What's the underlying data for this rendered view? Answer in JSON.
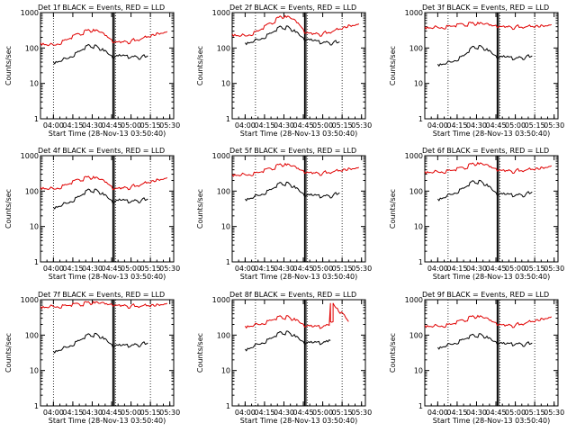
{
  "figure": {
    "start_time_label": "Start Time (28-Nov-13 03:50:40)"
  },
  "colors": {
    "events": "#000000",
    "lld": "#e00000",
    "axes": "#000000",
    "background": "#ffffff"
  },
  "chart_data": [
    {
      "type": "line",
      "title": "Det 1f BLACK = Events, RED = LLD",
      "xlabel": "Start Time (28-Nov-13 03:50:40)",
      "ylabel": "Counts/sec",
      "yscale": "log",
      "ylim": [
        1,
        1000
      ],
      "ytick_labels": [
        "1",
        "10",
        "100",
        "1000"
      ],
      "xlim": [
        "03:50",
        "05:33"
      ],
      "xtick_labels": [
        "04:00",
        "04:15",
        "04:30",
        "04:45",
        "05:00",
        "05:15",
        "05:30"
      ],
      "grid": false,
      "series": [
        {
          "name": "Events",
          "color": "black",
          "x": [
            "04:00",
            "04:10",
            "04:20",
            "04:28",
            "04:35",
            "04:42",
            "04:46",
            "04:52",
            "05:00",
            "05:08",
            "05:13"
          ],
          "y": [
            40,
            50,
            80,
            120,
            100,
            70,
            50,
            60,
            55,
            55,
            60
          ]
        },
        {
          "name": "LLD",
          "color": "red",
          "x": [
            "03:50",
            "04:00",
            "04:10",
            "04:20",
            "04:28",
            "04:35",
            "04:42",
            "04:46",
            "04:52",
            "05:00",
            "05:10",
            "05:20",
            "05:28"
          ],
          "y": [
            140,
            120,
            170,
            250,
            310,
            290,
            200,
            140,
            140,
            155,
            200,
            270,
            290
          ]
        }
      ],
      "markers": {
        "dotted_vlines": [
          "04:00",
          "04:48",
          "05:15"
        ],
        "solid_vlines": [
          "04:46",
          "04:47"
        ]
      }
    },
    {
      "type": "line",
      "title": "Det 2f BLACK = Events, RED = LLD",
      "xlabel": "Start Time (28-Nov-13 03:50:40)",
      "ylabel": "Counts/sec",
      "yscale": "log",
      "ylim": [
        1,
        1000
      ],
      "ytick_labels": [
        "1",
        "10",
        "100",
        "1000"
      ],
      "xlim": [
        "03:50",
        "05:33"
      ],
      "xtick_labels": [
        "04:00",
        "04:15",
        "04:30",
        "04:45",
        "05:00",
        "05:15",
        "05:30"
      ],
      "grid": false,
      "series": [
        {
          "name": "Events",
          "color": "black",
          "x": [
            "04:00",
            "04:10",
            "04:20",
            "04:28",
            "04:35",
            "04:42",
            "04:46",
            "04:52",
            "05:00",
            "05:08",
            "05:13"
          ],
          "y": [
            140,
            170,
            260,
            400,
            350,
            230,
            160,
            160,
            140,
            140,
            150
          ]
        },
        {
          "name": "LLD",
          "color": "red",
          "x": [
            "03:50",
            "04:00",
            "04:10",
            "04:20",
            "04:28",
            "04:35",
            "04:42",
            "04:46",
            "04:52",
            "05:00",
            "05:10",
            "05:20",
            "05:28"
          ],
          "y": [
            250,
            220,
            300,
            500,
            760,
            700,
            450,
            260,
            240,
            250,
            330,
            450,
            480
          ]
        }
      ],
      "markers": {
        "dotted_vlines": [
          "04:08",
          "04:48",
          "05:15"
        ],
        "solid_vlines": [
          "04:46",
          "04:47"
        ]
      }
    },
    {
      "type": "line",
      "title": "Det 3f BLACK = Events, RED = LLD",
      "xlabel": "Start Time (28-Nov-13 03:50:40)",
      "ylabel": "Counts/sec",
      "yscale": "log",
      "ylim": [
        1,
        1000
      ],
      "ytick_labels": [
        "1",
        "10",
        "100",
        "1000"
      ],
      "xlim": [
        "03:50",
        "05:33"
      ],
      "xtick_labels": [
        "04:00",
        "04:15",
        "04:30",
        "04:45",
        "05:00",
        "05:15",
        "05:30"
      ],
      "grid": false,
      "series": [
        {
          "name": "Events",
          "color": "black",
          "x": [
            "04:00",
            "04:10",
            "04:20",
            "04:28",
            "04:35",
            "04:42",
            "04:46",
            "04:52",
            "05:00",
            "05:08",
            "05:13"
          ],
          "y": [
            35,
            40,
            60,
            110,
            100,
            70,
            50,
            55,
            50,
            55,
            60
          ]
        },
        {
          "name": "LLD",
          "color": "red",
          "x": [
            "03:50",
            "04:00",
            "04:10",
            "04:20",
            "04:28",
            "04:35",
            "04:42",
            "04:46",
            "04:52",
            "05:00",
            "05:10",
            "05:20",
            "05:28"
          ],
          "y": [
            400,
            380,
            410,
            460,
            480,
            470,
            420,
            380,
            380,
            390,
            420,
            450,
            460
          ]
        }
      ],
      "markers": {
        "dotted_vlines": [
          "04:08",
          "04:48",
          "05:15"
        ],
        "solid_vlines": [
          "04:46",
          "04:47"
        ]
      }
    },
    {
      "type": "line",
      "title": "Det 4f BLACK = Events, RED = LLD",
      "xlabel": "Start Time (28-Nov-13 03:50:40)",
      "ylabel": "Counts/sec",
      "yscale": "log",
      "ylim": [
        1,
        1000
      ],
      "ytick_labels": [
        "1",
        "10",
        "100",
        "1000"
      ],
      "xlim": [
        "03:50",
        "05:33"
      ],
      "xtick_labels": [
        "04:00",
        "04:15",
        "04:30",
        "04:45",
        "05:00",
        "05:15",
        "05:30"
      ],
      "grid": false,
      "series": [
        {
          "name": "Events",
          "color": "black",
          "x": [
            "04:00",
            "04:10",
            "04:20",
            "04:28",
            "04:35",
            "04:42",
            "04:46",
            "04:52",
            "05:00",
            "05:08",
            "05:13"
          ],
          "y": [
            35,
            45,
            70,
            110,
            95,
            65,
            45,
            55,
            50,
            55,
            60
          ]
        },
        {
          "name": "LLD",
          "color": "red",
          "x": [
            "03:50",
            "04:00",
            "04:10",
            "04:20",
            "04:28",
            "04:35",
            "04:42",
            "04:46",
            "04:52",
            "05:00",
            "05:10",
            "05:20",
            "05:28"
          ],
          "y": [
            130,
            115,
            150,
            210,
            240,
            220,
            160,
            110,
            115,
            130,
            170,
            220,
            240
          ]
        }
      ],
      "markers": {
        "dotted_vlines": [
          "04:00",
          "04:48",
          "05:15"
        ],
        "solid_vlines": [
          "04:46",
          "04:47"
        ]
      }
    },
    {
      "type": "line",
      "title": "Det 5f BLACK = Events, RED = LLD",
      "xlabel": "Start Time (28-Nov-13 03:50:40)",
      "ylabel": "Counts/sec",
      "yscale": "log",
      "ylim": [
        1,
        1000
      ],
      "ytick_labels": [
        "1",
        "10",
        "100",
        "1000"
      ],
      "xlim": [
        "03:50",
        "05:33"
      ],
      "xtick_labels": [
        "04:00",
        "04:15",
        "04:30",
        "04:45",
        "05:00",
        "05:15",
        "05:30"
      ],
      "grid": false,
      "series": [
        {
          "name": "Events",
          "color": "black",
          "x": [
            "04:00",
            "04:10",
            "04:20",
            "04:28",
            "04:35",
            "04:42",
            "04:46",
            "04:52",
            "05:00",
            "05:08",
            "05:13"
          ],
          "y": [
            60,
            75,
            110,
            170,
            150,
            100,
            70,
            75,
            70,
            75,
            90
          ]
        },
        {
          "name": "LLD",
          "color": "red",
          "x": [
            "03:50",
            "04:00",
            "04:10",
            "04:20",
            "04:28",
            "04:35",
            "04:42",
            "04:46",
            "04:52",
            "05:00",
            "05:10",
            "05:20",
            "05:28"
          ],
          "y": [
            300,
            290,
            330,
            430,
            550,
            520,
            400,
            320,
            310,
            320,
            380,
            450,
            470
          ]
        }
      ],
      "markers": {
        "dotted_vlines": [
          "04:08",
          "04:48",
          "05:15"
        ],
        "solid_vlines": [
          "04:46",
          "04:47"
        ]
      }
    },
    {
      "type": "line",
      "title": "Det 6f BLACK = Events, RED = LLD",
      "xlabel": "Start Time (28-Nov-13 03:50:40)",
      "ylabel": "Counts/sec",
      "yscale": "log",
      "ylim": [
        1,
        1000
      ],
      "ytick_labels": [
        "1",
        "10",
        "100",
        "1000"
      ],
      "xlim": [
        "03:50",
        "05:33"
      ],
      "xtick_labels": [
        "04:00",
        "04:15",
        "04:30",
        "04:45",
        "05:00",
        "05:15",
        "05:30"
      ],
      "grid": false,
      "series": [
        {
          "name": "Events",
          "color": "black",
          "x": [
            "04:00",
            "04:10",
            "04:20",
            "04:28",
            "04:35",
            "04:42",
            "04:46",
            "04:52",
            "05:00",
            "05:08",
            "05:13"
          ],
          "y": [
            60,
            80,
            120,
            190,
            170,
            110,
            75,
            80,
            75,
            80,
            95
          ]
        },
        {
          "name": "LLD",
          "color": "red",
          "x": [
            "03:50",
            "04:00",
            "04:10",
            "04:20",
            "04:28",
            "04:35",
            "04:42",
            "04:46",
            "04:52",
            "05:00",
            "05:10",
            "05:20",
            "05:28"
          ],
          "y": [
            360,
            350,
            380,
            450,
            580,
            560,
            450,
            370,
            360,
            370,
            420,
            480,
            520
          ]
        }
      ],
      "markers": {
        "dotted_vlines": [
          "04:08",
          "04:48",
          "05:15"
        ],
        "solid_vlines": [
          "04:46",
          "04:47"
        ]
      }
    },
    {
      "type": "line",
      "title": "Det 7f BLACK = Events, RED = LLD",
      "xlabel": "Start Time (28-Nov-13 03:50:40)",
      "ylabel": "Counts/sec",
      "yscale": "log",
      "ylim": [
        1,
        1000
      ],
      "ytick_labels": [
        "1",
        "10",
        "100",
        "1000"
      ],
      "xlim": [
        "03:50",
        "05:33"
      ],
      "xtick_labels": [
        "04:00",
        "04:15",
        "04:30",
        "04:45",
        "05:00",
        "05:15",
        "05:30"
      ],
      "grid": false,
      "series": [
        {
          "name": "Events",
          "color": "black",
          "x": [
            "04:00",
            "04:10",
            "04:20",
            "04:28",
            "04:35",
            "04:42",
            "04:46",
            "04:52",
            "05:00",
            "05:08",
            "05:13"
          ],
          "y": [
            35,
            45,
            70,
            105,
            95,
            65,
            45,
            50,
            50,
            55,
            60
          ]
        },
        {
          "name": "LLD",
          "color": "red",
          "x": [
            "03:50",
            "04:00",
            "04:10",
            "04:20",
            "04:28",
            "04:35",
            "04:42",
            "04:46",
            "04:52",
            "05:00",
            "05:10",
            "05:20",
            "05:28"
          ],
          "y": [
            650,
            640,
            680,
            740,
            800,
            790,
            720,
            660,
            650,
            660,
            700,
            760,
            790
          ]
        }
      ],
      "markers": {
        "dotted_vlines": [
          "04:00",
          "04:48",
          "05:15"
        ],
        "solid_vlines": [
          "04:46",
          "04:47"
        ]
      }
    },
    {
      "type": "line",
      "title": "Det 8f BLACK = Events, RED = LLD",
      "xlabel": "Start Time (28-Nov-13 03:50:40)",
      "ylabel": "Counts/sec",
      "yscale": "log",
      "ylim": [
        1,
        1000
      ],
      "ytick_labels": [
        "1",
        "10",
        "100",
        "1000"
      ],
      "xlim": [
        "03:50",
        "05:33"
      ],
      "xtick_labels": [
        "04:00",
        "04:15",
        "04:30",
        "04:45",
        "05:00",
        "05:15",
        "05:30"
      ],
      "grid": false,
      "series": [
        {
          "name": "Events",
          "color": "black",
          "x": [
            "04:00",
            "04:10",
            "04:20",
            "04:28",
            "04:35",
            "04:42",
            "04:46",
            "04:52",
            "05:00",
            "05:04",
            "05:06"
          ],
          "y": [
            40,
            55,
            80,
            120,
            110,
            75,
            55,
            60,
            60,
            65,
            70
          ]
        },
        {
          "name": "LLD",
          "color": "red",
          "x": [
            "04:00",
            "04:10",
            "04:20",
            "04:28",
            "04:35",
            "04:42",
            "04:46",
            "04:52",
            "05:00",
            "05:05",
            "05:06",
            "05:06",
            "05:08",
            "05:08",
            "05:20"
          ],
          "y": [
            180,
            200,
            260,
            330,
            300,
            230,
            170,
            170,
            170,
            190,
            800,
            240,
            240,
            800,
            240
          ]
        }
      ],
      "markers": {
        "dotted_vlines": [
          "04:08",
          "04:48",
          "05:15"
        ],
        "solid_vlines": [
          "04:46",
          "04:47"
        ]
      }
    },
    {
      "type": "line",
      "title": "Det 9f BLACK = Events, RED = LLD",
      "xlabel": "Start Time (28-Nov-13 03:50:40)",
      "ylabel": "Counts/sec",
      "yscale": "log",
      "ylim": [
        1,
        1000
      ],
      "ytick_labels": [
        "1",
        "10",
        "100",
        "1000"
      ],
      "xlim": [
        "03:50",
        "05:33"
      ],
      "xtick_labels": [
        "04:00",
        "04:15",
        "04:30",
        "04:45",
        "05:00",
        "05:15",
        "05:30"
      ],
      "grid": false,
      "series": [
        {
          "name": "Events",
          "color": "black",
          "x": [
            "04:00",
            "04:10",
            "04:20",
            "04:28",
            "04:35",
            "04:42",
            "04:46",
            "04:52",
            "05:00",
            "05:08",
            "05:13"
          ],
          "y": [
            45,
            55,
            75,
            100,
            95,
            70,
            55,
            55,
            55,
            55,
            60
          ]
        },
        {
          "name": "LLD",
          "color": "red",
          "x": [
            "03:50",
            "04:00",
            "04:10",
            "04:20",
            "04:28",
            "04:35",
            "04:42",
            "04:46",
            "04:52",
            "05:00",
            "05:10",
            "05:20",
            "05:28"
          ],
          "y": [
            190,
            180,
            200,
            260,
            330,
            310,
            240,
            190,
            180,
            190,
            240,
            300,
            330
          ]
        }
      ],
      "markers": {
        "dotted_vlines": [
          "04:08",
          "04:48",
          "05:15"
        ],
        "solid_vlines": [
          "04:46",
          "04:47"
        ]
      }
    }
  ]
}
